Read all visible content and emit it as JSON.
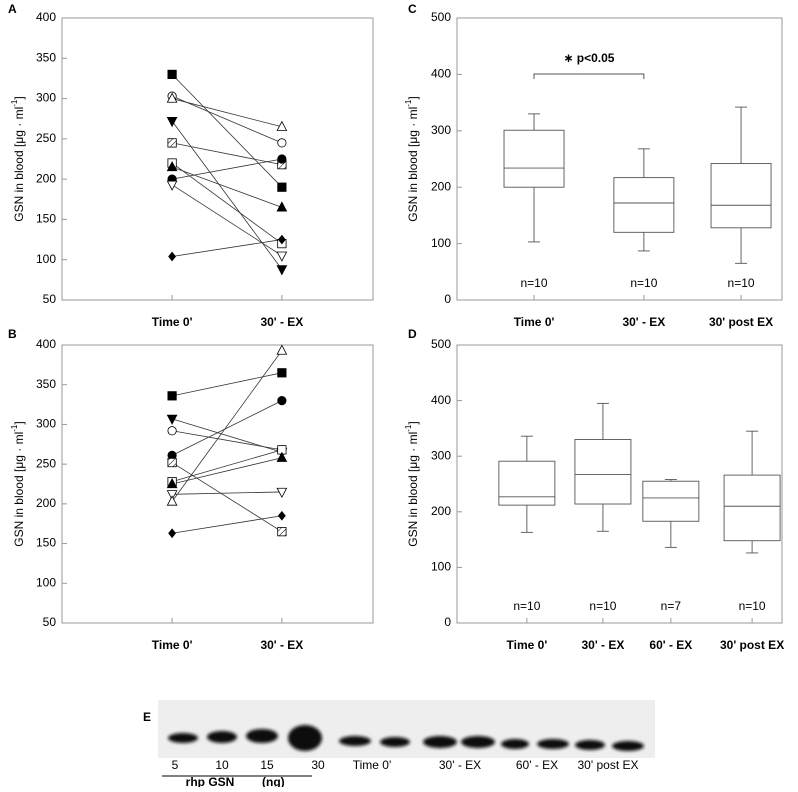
{
  "chart_data": [
    {
      "type": "line",
      "panel": "A",
      "categories": [
        "Time 0'",
        "30' - EX"
      ],
      "ylabel": "GSN in blood [μg · ml",
      "ylabel_sup": "-1",
      "ylim": [
        50,
        400
      ],
      "yticks": [
        50,
        100,
        150,
        200,
        250,
        300,
        350,
        400
      ],
      "series": [
        {
          "marker": "square",
          "fill": "filled",
          "color": "#000",
          "values": [
            330,
            190
          ]
        },
        {
          "marker": "circle",
          "fill": "open",
          "color": "#000",
          "values": [
            303,
            245
          ]
        },
        {
          "marker": "triangle-up",
          "fill": "open",
          "color": "#000",
          "values": [
            300,
            265
          ]
        },
        {
          "marker": "triangle-down",
          "fill": "filled",
          "color": "#000",
          "values": [
            272,
            88
          ]
        },
        {
          "marker": "square",
          "fill": "hatched",
          "color": "#000",
          "values": [
            245,
            218
          ]
        },
        {
          "marker": "square",
          "fill": "open",
          "color": "#000",
          "values": [
            220,
            120
          ]
        },
        {
          "marker": "triangle-up",
          "fill": "filled",
          "color": "#000",
          "values": [
            215,
            165
          ]
        },
        {
          "marker": "circle",
          "fill": "filled",
          "color": "#000",
          "values": [
            200,
            225
          ]
        },
        {
          "marker": "triangle-down",
          "fill": "open",
          "color": "#000",
          "values": [
            193,
            105
          ]
        },
        {
          "marker": "diamond",
          "fill": "filled",
          "color": "#000",
          "values": [
            104,
            125
          ]
        }
      ]
    },
    {
      "type": "line",
      "panel": "B",
      "categories": [
        "Time 0'",
        "30' - EX"
      ],
      "ylabel": "GSN in blood [μg · ml",
      "ylabel_sup": "-1",
      "ylim": [
        50,
        400
      ],
      "yticks": [
        50,
        100,
        150,
        200,
        250,
        300,
        350,
        400
      ],
      "series": [
        {
          "marker": "square",
          "fill": "filled",
          "color": "#000",
          "values": [
            336,
            365
          ]
        },
        {
          "marker": "triangle-down",
          "fill": "filled",
          "color": "#000",
          "values": [
            307,
            265
          ]
        },
        {
          "marker": "circle",
          "fill": "open",
          "color": "#000",
          "values": [
            292,
            268
          ]
        },
        {
          "marker": "circle",
          "fill": "filled",
          "color": "#000",
          "values": [
            261,
            330
          ]
        },
        {
          "marker": "square",
          "fill": "hatched",
          "color": "#000",
          "values": [
            252,
            165
          ]
        },
        {
          "marker": "square",
          "fill": "open",
          "color": "#000",
          "values": [
            228,
            268
          ]
        },
        {
          "marker": "triangle-up",
          "fill": "filled",
          "color": "#000",
          "values": [
            225,
            258
          ]
        },
        {
          "marker": "triangle-down",
          "fill": "open",
          "color": "#000",
          "values": [
            212,
            215
          ]
        },
        {
          "marker": "triangle-up",
          "fill": "open",
          "color": "#000",
          "values": [
            203,
            393
          ]
        },
        {
          "marker": "diamond",
          "fill": "filled",
          "color": "#000",
          "values": [
            163,
            185
          ]
        }
      ]
    },
    {
      "type": "box",
      "panel": "C",
      "categories": [
        "Time 0'",
        "30' - EX",
        "30' post EX"
      ],
      "ylabel": "GSN in blood [μg · ml",
      "ylabel_sup": "-1",
      "ylim": [
        0,
        500
      ],
      "yticks": [
        0,
        100,
        200,
        300,
        400,
        500
      ],
      "boxes": [
        {
          "min": 103,
          "q1": 200,
          "median": 234,
          "q3": 301,
          "max": 330
        },
        {
          "min": 87,
          "q1": 120,
          "median": 172,
          "q3": 217,
          "max": 268
        },
        {
          "min": 65,
          "q1": 128,
          "median": 168,
          "q3": 242,
          "max": 342
        }
      ],
      "n_labels": [
        "n=10",
        "n=10",
        "n=10"
      ],
      "annotation": "∗ p<0.05"
    },
    {
      "type": "box",
      "panel": "D",
      "categories": [
        "Time 0'",
        "30' - EX",
        "60' - EX",
        "30' post EX"
      ],
      "ylabel": "GSN in blood [μg · ml",
      "ylabel_sup": "-1",
      "ylim": [
        0,
        500
      ],
      "yticks": [
        0,
        100,
        200,
        300,
        400,
        500
      ],
      "boxes": [
        {
          "min": 163,
          "q1": 212,
          "median": 227,
          "q3": 291,
          "max": 336
        },
        {
          "min": 165,
          "q1": 214,
          "median": 267,
          "q3": 330,
          "max": 395
        },
        {
          "min": 136,
          "q1": 183,
          "median": 225,
          "q3": 255,
          "max": 258
        },
        {
          "min": 126,
          "q1": 148,
          "median": 210,
          "q3": 266,
          "max": 345
        }
      ],
      "n_labels": [
        "n=10",
        "n=10",
        "n=7",
        "n=10"
      ]
    }
  ],
  "blot": {
    "panel": "E",
    "standards": [
      "5",
      "10",
      "15",
      "30"
    ],
    "groups": [
      "Time 0'",
      "30' - EX",
      "60' - EX",
      "30' post EX"
    ],
    "standard_label": "rhp GSN",
    "standard_unit": "(ng)"
  }
}
